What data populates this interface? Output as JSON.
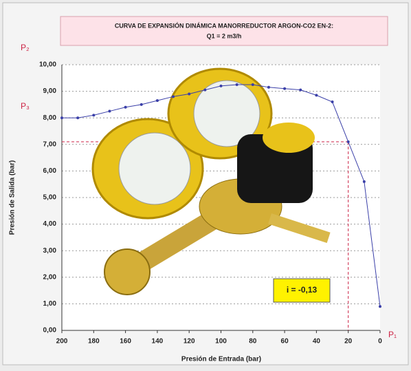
{
  "chart_data": {
    "type": "line",
    "title": "CURVA DE EXPANSIÓN DINÁMICA MANORREDUCTOR ARGON-CO2 EN-2:",
    "subtitle": "Q1 = 2 m3/h",
    "x_label": "Presión de Entrada  (bar)",
    "y_label": "Presión de Salida  (bar)",
    "annotations": [
      "i = -0,13",
      "P₂",
      "P₃",
      "P₁"
    ],
    "x": [
      200,
      190,
      180,
      170,
      160,
      150,
      140,
      130,
      120,
      110,
      100,
      90,
      80,
      70,
      60,
      50,
      40,
      30,
      20,
      10,
      0
    ],
    "series": [
      {
        "name": "Presión de Salida",
        "color": "#3a3fa8",
        "values": [
          8.0,
          8.0,
          8.1,
          8.25,
          8.4,
          8.5,
          8.65,
          8.8,
          8.9,
          9.05,
          9.2,
          9.25,
          9.25,
          9.15,
          9.1,
          9.05,
          8.85,
          8.6,
          7.1,
          5.6,
          0.9
        ]
      }
    ],
    "ref_lines": {
      "y": 7.1,
      "x": 20,
      "color": "#cc2244"
    },
    "xlim": [
      200,
      0
    ],
    "ylim": [
      0,
      10
    ],
    "xticks": [
      200,
      180,
      160,
      140,
      120,
      100,
      80,
      60,
      40,
      20,
      0
    ],
    "yticks": [
      {
        "value": 0,
        "label": "0,00"
      },
      {
        "value": 1,
        "label": "1,00"
      },
      {
        "value": 2,
        "label": "2,00"
      },
      {
        "value": 3,
        "label": "3,00"
      },
      {
        "value": 4,
        "label": "4,00"
      },
      {
        "value": 5,
        "label": "5,00"
      },
      {
        "value": 6,
        "label": "6,00"
      },
      {
        "value": 7,
        "label": "7,00"
      },
      {
        "value": 8,
        "label": "8,00"
      },
      {
        "value": 9,
        "label": "9,00"
      },
      {
        "value": 10,
        "label": "10,00"
      }
    ],
    "grid": true
  }
}
